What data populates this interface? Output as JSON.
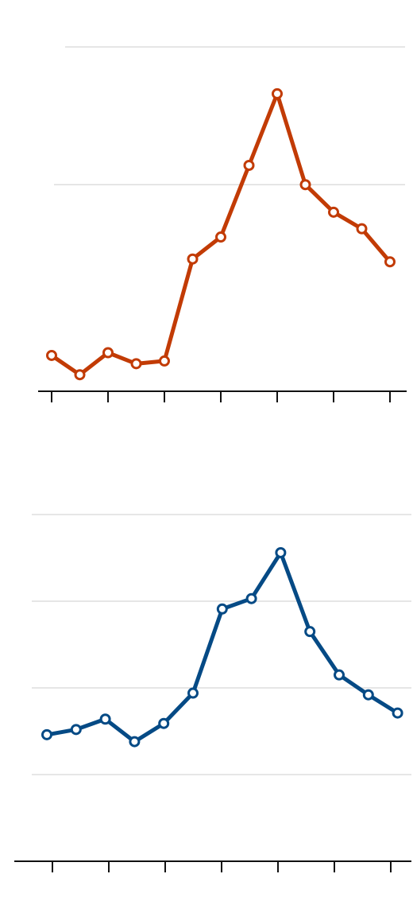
{
  "chart_data": [
    {
      "type": "line",
      "title": "",
      "xlabel": "",
      "ylabel": "",
      "x": [
        1,
        2,
        3,
        4,
        5,
        6,
        7,
        8,
        9,
        10,
        11,
        12,
        13
      ],
      "series": [
        {
          "values": [
            1.38,
            1.31,
            1.39,
            1.35,
            1.36,
            1.73,
            1.81,
            2.07,
            2.33,
            2.0,
            1.9,
            1.84,
            1.72
          ]
        }
      ],
      "ylim": [
        1.25,
        2.5
      ],
      "gridlines": [
        2.0,
        2.5
      ],
      "grid": true,
      "legend": "none",
      "color": "#c23b05"
    },
    {
      "type": "line",
      "title": "",
      "xlabel": "",
      "ylabel": "",
      "x": [
        1,
        2,
        3,
        4,
        5,
        6,
        7,
        8,
        9,
        10,
        11,
        12,
        13
      ],
      "series": [
        {
          "values": [
            1.46,
            1.52,
            1.64,
            1.38,
            1.59,
            1.94,
            2.91,
            3.03,
            3.56,
            2.65,
            2.15,
            1.92,
            1.71
          ]
        }
      ],
      "ylim": [
        0,
        4
      ],
      "gridlines": [
        1,
        2,
        3,
        4
      ],
      "grid": true,
      "legend": "none",
      "color": "#054a85"
    }
  ]
}
